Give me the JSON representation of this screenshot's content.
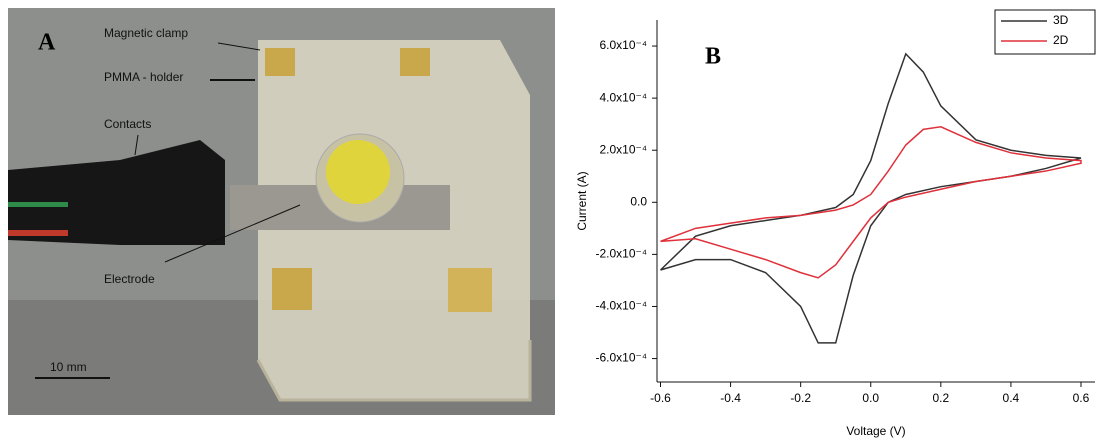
{
  "photo": {
    "panel_label": "A",
    "labels": [
      "Magnetic clamp",
      "PMMA - holder",
      "Contacts",
      "Electrode"
    ],
    "scale_bar": "10 mm"
  },
  "chart_data": {
    "type": "line",
    "panel_label": "B",
    "x_label": "Voltage (V)",
    "y_label": "Current (A)",
    "legend": "top-right",
    "x": [
      -0.6,
      -0.5,
      -0.4,
      -0.3,
      -0.2,
      -0.1,
      -0.05,
      0,
      0.05,
      0.1,
      0.15,
      0.2,
      0.3,
      0.4,
      0.5,
      0.6,
      0.6,
      0.5,
      0.4,
      0.3,
      0.2,
      0.1,
      0.05,
      0,
      -0.05,
      -0.1,
      -0.15,
      -0.2,
      -0.3,
      -0.4,
      -0.5,
      -0.6
    ],
    "series": [
      {
        "name": "3D",
        "color": "#333333",
        "values": [
          -0.00026,
          -0.00013,
          -9e-05,
          -7e-05,
          -5e-05,
          -2e-05,
          3e-05,
          0.00016,
          0.00038,
          0.00057,
          0.0005,
          0.00037,
          0.00024,
          0.0002,
          0.00018,
          0.00017,
          0.00017,
          0.00013,
          0.0001,
          8e-05,
          6e-05,
          3e-05,
          0,
          -9e-05,
          -0.00028,
          -0.00054,
          -0.00054,
          -0.0004,
          -0.00027,
          -0.00022,
          -0.00022,
          -0.00026
        ]
      },
      {
        "name": "2D",
        "color": "#e0303a",
        "values": [
          -0.00015,
          -0.0001,
          -8e-05,
          -6e-05,
          -5e-05,
          -3e-05,
          -1e-05,
          3e-05,
          0.00012,
          0.00022,
          0.00028,
          0.00029,
          0.00023,
          0.00019,
          0.00017,
          0.00016,
          0.00015,
          0.00012,
          0.0001,
          8e-05,
          5e-05,
          2e-05,
          0,
          -6e-05,
          -0.00015,
          -0.00024,
          -0.00029,
          -0.00027,
          -0.00022,
          -0.00018,
          -0.00014,
          -0.00015
        ]
      }
    ],
    "xlim": [
      -0.61,
      0.64
    ],
    "ylim": [
      -0.00069,
      0.0007
    ],
    "xticks": [
      -0.6,
      -0.4,
      -0.2,
      {
        "value": 0,
        "label": "0.0"
      },
      0.2,
      0.4,
      0.6
    ],
    "yticks": [
      {
        "value": -0.0006,
        "label": "-6.0x10⁻⁴"
      },
      {
        "value": -0.0004,
        "label": "-4.0x10⁻⁴"
      },
      {
        "value": -0.0002,
        "label": "-2.0x10⁻⁴"
      },
      {
        "value": 0,
        "label": "0.0"
      },
      {
        "value": 0.0002,
        "label": "2.0x10⁻⁴"
      },
      {
        "value": 0.0004,
        "label": "4.0x10⁻⁴"
      },
      {
        "value": 0.0006,
        "label": "6.0x10⁻⁴"
      }
    ]
  }
}
